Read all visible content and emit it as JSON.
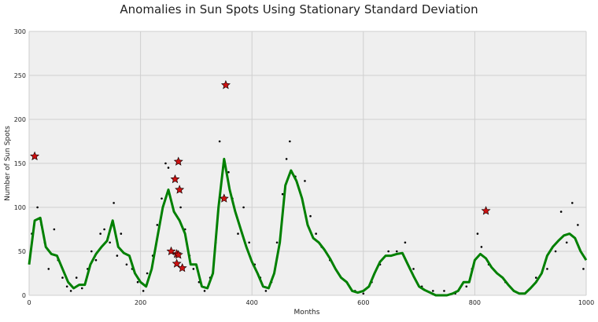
{
  "chart_data": {
    "type": "scatter",
    "title": "Anomalies in Sun Spots Using Stationary Standard Deviation",
    "xlabel": "Months",
    "ylabel": "Number of Sun Spots",
    "xlim": [
      0,
      1000
    ],
    "ylim": [
      0,
      300
    ],
    "xticks": [
      0,
      200,
      400,
      600,
      800,
      1000
    ],
    "yticks": [
      0,
      50,
      100,
      150,
      200,
      250,
      300
    ],
    "grid": true,
    "series": [
      {
        "type": "scatter",
        "marker": "dot",
        "color": "#000000",
        "x": [
          5,
          15,
          22,
          28,
          35,
          45,
          52,
          60,
          68,
          75,
          85,
          95,
          105,
          112,
          120,
          128,
          135,
          145,
          152,
          158,
          165,
          175,
          185,
          195,
          205,
          212,
          222,
          230,
          238,
          245,
          250,
          258,
          272,
          280,
          288,
          295,
          305,
          315,
          325,
          335,
          342,
          348,
          358,
          365,
          375,
          385,
          395,
          405,
          415,
          425,
          435,
          445,
          455,
          462,
          468,
          478,
          485,
          495,
          505,
          515,
          525,
          540,
          555,
          570,
          585,
          600,
          615,
          630,
          645,
          660,
          675,
          690,
          705,
          725,
          745,
          765,
          785,
          795,
          805,
          812,
          825,
          840,
          855,
          870,
          890,
          910,
          930,
          945,
          955,
          965,
          975,
          985,
          995
        ],
        "values": [
          70,
          100,
          80,
          60,
          30,
          75,
          40,
          20,
          10,
          5,
          20,
          8,
          30,
          50,
          40,
          70,
          75,
          60,
          105,
          45,
          70,
          35,
          30,
          15,
          5,
          25,
          45,
          80,
          110,
          150,
          145,
          100,
          100,
          75,
          45,
          30,
          15,
          5,
          20,
          60,
          175,
          145,
          140,
          110,
          70,
          100,
          60,
          35,
          20,
          5,
          15,
          60,
          115,
          155,
          175,
          135,
          120,
          130,
          90,
          70,
          55,
          40,
          25,
          15,
          5,
          2,
          15,
          35,
          50,
          50,
          60,
          30,
          10,
          5,
          5,
          2,
          10,
          30,
          70,
          55,
          35,
          25,
          15,
          5,
          2,
          20,
          30,
          50,
          95,
          60,
          105,
          80,
          30
        ]
      },
      {
        "type": "line",
        "color": "#008000",
        "x": [
          0,
          10,
          20,
          30,
          40,
          50,
          60,
          70,
          80,
          90,
          100,
          110,
          120,
          130,
          140,
          150,
          160,
          170,
          180,
          190,
          200,
          210,
          220,
          230,
          240,
          250,
          260,
          270,
          280,
          290,
          300,
          310,
          320,
          330,
          340,
          350,
          360,
          370,
          380,
          390,
          400,
          410,
          420,
          430,
          440,
          450,
          460,
          470,
          480,
          490,
          500,
          510,
          520,
          530,
          540,
          550,
          560,
          570,
          580,
          590,
          600,
          610,
          620,
          630,
          640,
          650,
          660,
          670,
          680,
          690,
          700,
          710,
          720,
          730,
          740,
          750,
          760,
          770,
          780,
          790,
          800,
          810,
          820,
          830,
          840,
          850,
          860,
          870,
          880,
          890,
          900,
          910,
          920,
          930,
          940,
          950,
          960,
          970,
          980,
          990,
          1000
        ],
        "values": [
          35,
          85,
          88,
          55,
          47,
          45,
          30,
          15,
          8,
          12,
          12,
          35,
          47,
          55,
          62,
          85,
          55,
          48,
          45,
          25,
          15,
          10,
          30,
          65,
          100,
          120,
          95,
          85,
          70,
          35,
          35,
          10,
          8,
          25,
          100,
          155,
          120,
          95,
          75,
          55,
          38,
          25,
          10,
          8,
          25,
          60,
          125,
          142,
          130,
          110,
          80,
          65,
          60,
          52,
          42,
          30,
          20,
          15,
          5,
          3,
          5,
          10,
          25,
          38,
          45,
          45,
          47,
          48,
          35,
          22,
          10,
          6,
          3,
          0,
          0,
          0,
          2,
          5,
          15,
          15,
          40,
          47,
          42,
          32,
          25,
          20,
          12,
          5,
          2,
          2,
          8,
          15,
          25,
          45,
          55,
          62,
          68,
          70,
          65,
          50,
          40
        ]
      },
      {
        "type": "scatter",
        "marker": "star",
        "color": "#cc1111",
        "x": [
          10,
          255,
          262,
          265,
          265,
          268,
          268,
          270,
          275,
          350,
          353,
          820
        ],
        "values": [
          158,
          50,
          132,
          47,
          36,
          46,
          152,
          120,
          31,
          110,
          239,
          96
        ]
      }
    ]
  }
}
